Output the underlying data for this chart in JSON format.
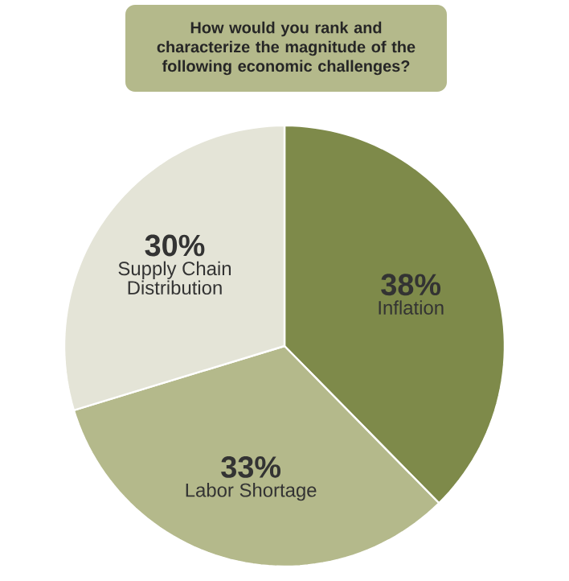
{
  "chart_data": {
    "type": "pie",
    "title": "How would you rank and characterize the magnitude of the following economic challenges?",
    "categories": [
      "Inflation",
      "Labor Shortage",
      "Supply Chain Distribution"
    ],
    "values": [
      38,
      33,
      30
    ],
    "colors": [
      "#7e8a4a",
      "#b4b98b",
      "#e4e4d7"
    ],
    "value_labels": [
      "38%",
      "33%",
      "30%"
    ]
  }
}
